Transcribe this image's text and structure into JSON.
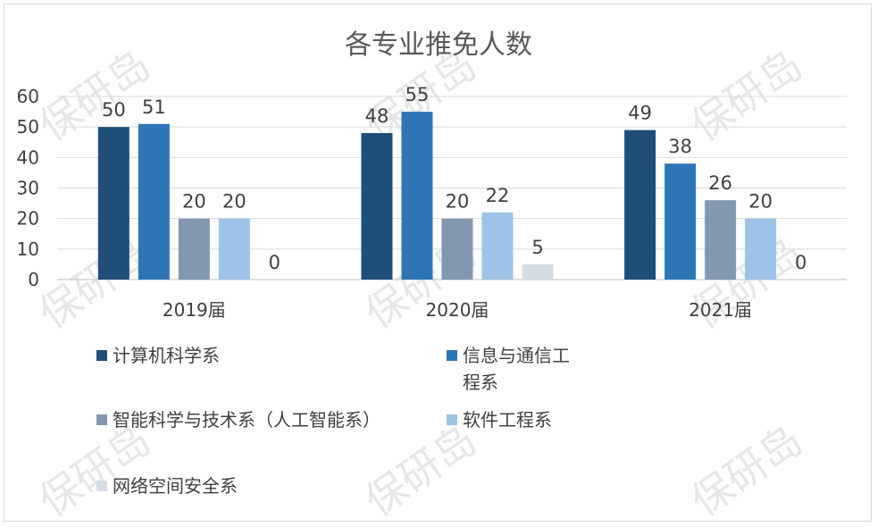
{
  "chart_data": {
    "type": "bar",
    "title": "各专业推免人数",
    "categories": [
      "2019届",
      "2020届",
      "2021届"
    ],
    "series": [
      {
        "name": "计算机科学系",
        "values": [
          50,
          48,
          49
        ],
        "color": "#1f4e79"
      },
      {
        "name": "信息与通信工程系",
        "legend_lines": [
          "信息与通信工",
          "程系"
        ],
        "values": [
          51,
          55,
          38
        ],
        "color": "#2e75b6"
      },
      {
        "name": "智能科学与技术系（人工智能系）",
        "values": [
          20,
          20,
          26
        ],
        "color": "#8497b0"
      },
      {
        "name": "软件工程系",
        "values": [
          20,
          22,
          20
        ],
        "color": "#9dc3e6"
      },
      {
        "name": "网络空间安全系",
        "values": [
          0,
          5,
          0
        ],
        "color": "#d6dce4"
      }
    ],
    "yticks": [
      "0",
      "10",
      "20",
      "30",
      "40",
      "50",
      "60"
    ],
    "ylim": [
      0,
      60
    ],
    "grid": true,
    "legend_position": "bottom",
    "data_labels": true,
    "watermark": "保研岛"
  }
}
